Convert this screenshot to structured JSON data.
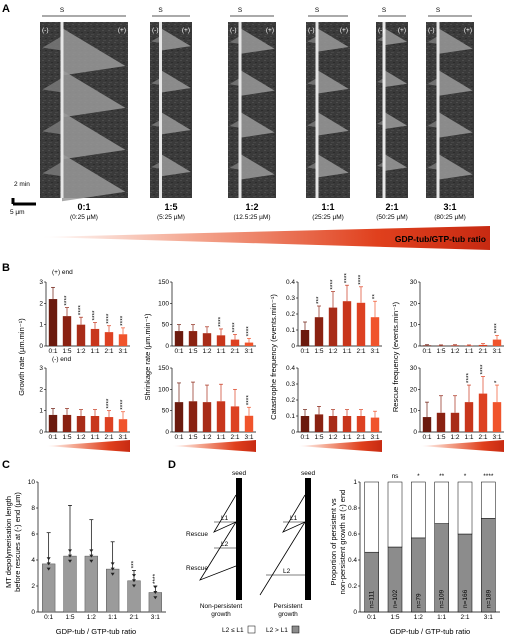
{
  "figure": {
    "panel_letters": [
      "A",
      "B",
      "C",
      "D"
    ],
    "panel_a": {
      "seed_mark": "S",
      "minus_mark": "(-)",
      "plus_mark": "(+)",
      "scale_time": "2 min",
      "scale_length": "5 µm",
      "ratio_label": "GDP-tub/GTP-tub ratio",
      "conditions": [
        {
          "ratio": "0:1",
          "conc": "(0:25 µM)"
        },
        {
          "ratio": "1:5",
          "conc": "(5:25 µM)"
        },
        {
          "ratio": "1:2",
          "conc": "(12.5:25 µM)"
        },
        {
          "ratio": "1:1",
          "conc": "(25:25 µM)"
        },
        {
          "ratio": "2:1",
          "conc": "(50:25 µM)"
        },
        {
          "ratio": "3:1",
          "conc": "(80:25 µM)"
        }
      ]
    },
    "panel_b": {
      "plus_end_label": "(+) end",
      "minus_end_label": "(-) end",
      "colors": [
        "#6b1a0e",
        "#8a2212",
        "#a82c18",
        "#c8361c",
        "#dd4122",
        "#f0542c"
      ]
    },
    "panel_c": {
      "ylabel_line1": "MT depolymerisation length",
      "ylabel_line2": "before rescues at (-) end (µm)",
      "xlabel": "GDP-tub / GTP-tub ratio"
    },
    "panel_d": {
      "seed_label": "seed",
      "l1_label": "L1",
      "l2_label": "L2",
      "rescue_label": "Rescue",
      "non_persistent_line1": "Non-persistent",
      "non_persistent_line2": "growth",
      "persistent_line1": "Persistent",
      "persistent_line2": "growth",
      "legend_white": "L2 ≤ L1",
      "legend_grey": "L2 > L1",
      "bar_ylabel_line1": "Proportion of persistent vs",
      "bar_ylabel_line2": "non-persistent growth at (-) end",
      "xlabel": "GDP-tub / GTP-tub ratio",
      "n_labels": [
        "n=111",
        "n=102",
        "n=79",
        "n=109",
        "n=166",
        "n=189"
      ],
      "significance": [
        "",
        "ns",
        "*",
        "**",
        "*",
        "****"
      ]
    }
  },
  "chart_data": [
    {
      "type": "bar",
      "title": "",
      "panel": "B",
      "end": "(+) end",
      "ylabel": "Growth rate (µm.min⁻¹)",
      "xlabel": "",
      "categories": [
        "0:1",
        "1:5",
        "1:2",
        "1:1",
        "2:1",
        "3:1"
      ],
      "values": [
        2.2,
        1.4,
        1.0,
        0.8,
        0.65,
        0.55
      ],
      "errors": [
        0.55,
        0.4,
        0.35,
        0.3,
        0.3,
        0.3
      ],
      "significance": [
        "",
        "****",
        "****",
        "****",
        "****",
        "****"
      ],
      "ylim": [
        0,
        3
      ],
      "yticks": [
        0,
        1,
        2,
        3
      ]
    },
    {
      "type": "bar",
      "title": "",
      "panel": "B",
      "end": "(-) end",
      "ylabel": "",
      "xlabel": "",
      "categories": [
        "0:1",
        "1:5",
        "1:2",
        "1:1",
        "2:1",
        "3:1"
      ],
      "values": [
        0.8,
        0.8,
        0.75,
        0.75,
        0.7,
        0.6
      ],
      "errors": [
        0.3,
        0.3,
        0.3,
        0.3,
        0.3,
        0.35
      ],
      "significance": [
        "",
        "",
        "",
        "",
        "****",
        "****"
      ],
      "ylim": [
        0,
        3
      ],
      "yticks": [
        0,
        1,
        2,
        3
      ]
    },
    {
      "type": "bar",
      "title": "",
      "panel": "B",
      "end": "(+) end",
      "ylabel": "Shrinkage rate (µm.min⁻¹)",
      "xlabel": "",
      "categories": [
        "0:1",
        "1:5",
        "1:2",
        "1:1",
        "2:1",
        "3:1"
      ],
      "values": [
        35,
        35,
        30,
        25,
        15,
        8
      ],
      "errors": [
        15,
        15,
        15,
        15,
        12,
        10
      ],
      "significance": [
        "",
        "",
        "",
        "****",
        "****",
        "****"
      ],
      "ylim": [
        0,
        150
      ],
      "yticks": [
        0,
        50,
        100,
        150
      ]
    },
    {
      "type": "bar",
      "title": "",
      "panel": "B",
      "end": "(-) end",
      "ylabel": "",
      "xlabel": "",
      "categories": [
        "0:1",
        "1:5",
        "1:2",
        "1:1",
        "2:1",
        "3:1"
      ],
      "values": [
        70,
        72,
        70,
        72,
        60,
        38
      ],
      "errors": [
        45,
        45,
        40,
        40,
        40,
        20
      ],
      "significance": [
        "",
        "",
        "",
        "",
        "",
        "****"
      ],
      "ylim": [
        0,
        150
      ],
      "yticks": [
        0,
        50,
        100,
        150
      ]
    },
    {
      "type": "bar",
      "title": "",
      "panel": "B",
      "end": "(+) end",
      "ylabel": "Catastrophe frequency (events.min⁻¹)",
      "xlabel": "",
      "categories": [
        "0:1",
        "1:5",
        "1:2",
        "1:1",
        "2:1",
        "3:1"
      ],
      "values": [
        0.1,
        0.18,
        0.24,
        0.28,
        0.27,
        0.18
      ],
      "errors": [
        0.05,
        0.07,
        0.1,
        0.1,
        0.1,
        0.1
      ],
      "significance": [
        "",
        "***",
        "****",
        "****",
        "****",
        "**"
      ],
      "ylim": [
        0,
        0.4
      ],
      "yticks": [
        0,
        0.1,
        0.2,
        0.3,
        0.4
      ]
    },
    {
      "type": "bar",
      "title": "",
      "panel": "B",
      "end": "(-) end",
      "ylabel": "",
      "xlabel": "",
      "categories": [
        "0:1",
        "1:5",
        "1:2",
        "1:1",
        "2:1",
        "3:1"
      ],
      "values": [
        0.1,
        0.11,
        0.1,
        0.1,
        0.1,
        0.09
      ],
      "errors": [
        0.04,
        0.05,
        0.04,
        0.04,
        0.04,
        0.04
      ],
      "significance": [
        "",
        "",
        "",
        "",
        "",
        ""
      ],
      "ylim": [
        0,
        0.4
      ],
      "yticks": [
        0,
        0.1,
        0.2,
        0.3,
        0.4
      ]
    },
    {
      "type": "bar",
      "title": "",
      "panel": "B",
      "end": "(+) end",
      "ylabel": "Rescue frequency (events.min⁻¹)",
      "xlabel": "",
      "categories": [
        "0:1",
        "1:5",
        "1:2",
        "1:1",
        "2:1",
        "3:1"
      ],
      "values": [
        0.3,
        0.2,
        0.3,
        0.2,
        0.5,
        3
      ],
      "errors": [
        0.3,
        0.3,
        0.3,
        0.3,
        0.6,
        2
      ],
      "significance": [
        "",
        "",
        "",
        "",
        "",
        "****"
      ],
      "ylim": [
        0,
        30
      ],
      "yticks": [
        0,
        10,
        20,
        30
      ]
    },
    {
      "type": "bar",
      "title": "",
      "panel": "B",
      "end": "(-) end",
      "ylabel": "",
      "xlabel": "",
      "categories": [
        "0:1",
        "1:5",
        "1:2",
        "1:1",
        "2:1",
        "3:1"
      ],
      "values": [
        7,
        9,
        9,
        14,
        18,
        14
      ],
      "errors": [
        7,
        8,
        8,
        8,
        8,
        8
      ],
      "significance": [
        "",
        "",
        "",
        "****",
        "****",
        "*"
      ],
      "ylim": [
        0,
        30
      ],
      "yticks": [
        0,
        10,
        20,
        30
      ]
    },
    {
      "type": "bar",
      "title": "",
      "panel": "C",
      "ylabel": "MT depolymerisation length before rescues at (-) end (µm)",
      "xlabel": "GDP-tub / GTP-tub ratio",
      "categories": [
        "0:1",
        "1:5",
        "1:2",
        "1:1",
        "2:1",
        "3:1"
      ],
      "values": [
        3.7,
        4.3,
        4.3,
        3.3,
        2.4,
        1.5
      ],
      "errors": [
        2.4,
        3.9,
        2.8,
        2.1,
        0.8,
        0.5
      ],
      "significance": [
        "",
        "",
        "",
        "",
        "***",
        "****"
      ],
      "ylim": [
        0,
        10
      ],
      "yticks": [
        0,
        2,
        4,
        6,
        8,
        10
      ]
    },
    {
      "type": "bar",
      "title": "",
      "panel": "D",
      "stacked": true,
      "ylabel": "Proportion of persistent vs non-persistent growth at (-) end",
      "xlabel": "GDP-tub / GTP-tub ratio",
      "categories": [
        "0:1",
        "1:5",
        "1:2",
        "1:1",
        "2:1",
        "3:1"
      ],
      "series": [
        {
          "name": "L2 > L1",
          "values": [
            0.46,
            0.5,
            0.57,
            0.68,
            0.6,
            0.72
          ]
        },
        {
          "name": "L2 ≤ L1",
          "values": [
            0.54,
            0.5,
            0.43,
            0.32,
            0.4,
            0.28
          ]
        }
      ],
      "ylim": [
        0,
        1
      ],
      "yticks": [
        0,
        0.2,
        0.4,
        0.6,
        0.8,
        1.0
      ]
    }
  ]
}
